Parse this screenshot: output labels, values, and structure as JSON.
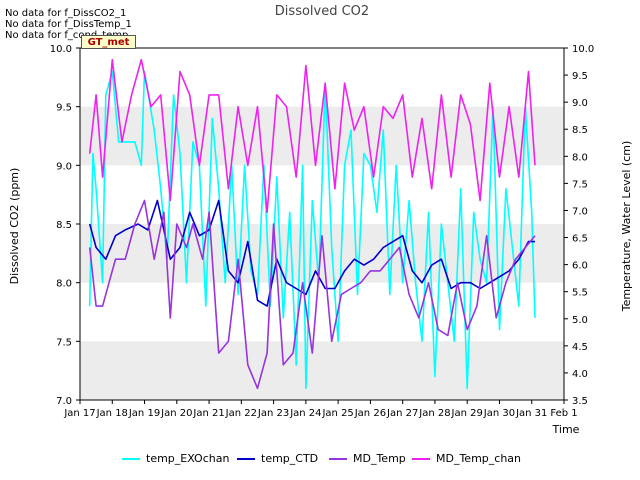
{
  "notices": [
    "No data for f_DissCO2_1",
    "No data for f_DissTemp_1",
    "No data for f_cond_temp"
  ],
  "badge": "GT_met",
  "chart_data": {
    "type": "line",
    "title": "Dissolved CO2",
    "xlabel": "Time",
    "ylabel_left": "Dissolved CO2 (ppm)",
    "ylabel_right": "Temperature, Water Level (cm)",
    "x_ticks": [
      "Jan 17",
      "Jan 18",
      "Jan 19",
      "Jan 20",
      "Jan 21",
      "Jan 22",
      "Jan 23",
      "Jan 24",
      "Jan 25",
      "Jan 26",
      "Jan 27",
      "Jan 28",
      "Jan 29",
      "Jan 30",
      "Jan 31",
      "Feb 1"
    ],
    "xlim": [
      17,
      32
    ],
    "ylim_left": [
      7.0,
      10.0
    ],
    "yticks_left": [
      "7.0",
      "7.5",
      "8.0",
      "8.5",
      "9.0",
      "9.5",
      "10.0"
    ],
    "ylim_right": [
      3.5,
      10.0
    ],
    "yticks_right": [
      "3.5",
      "4.0",
      "4.5",
      "5.0",
      "5.5",
      "6.0",
      "6.5",
      "7.0",
      "7.5",
      "8.0",
      "8.5",
      "9.0",
      "9.5",
      "10.0"
    ],
    "grid_bands": true,
    "legend_position": "bottom",
    "series": [
      {
        "name": "temp_EXOchan",
        "color": "#00ffff",
        "x": [
          17.3,
          17.4,
          17.5,
          17.7,
          17.8,
          18.0,
          18.2,
          18.4,
          18.7,
          18.9,
          19.0,
          19.3,
          19.5,
          19.7,
          19.9,
          20.1,
          20.3,
          20.5,
          20.7,
          20.9,
          21.1,
          21.3,
          21.5,
          21.7,
          21.9,
          22.1,
          22.3,
          22.5,
          22.7,
          22.9,
          23.1,
          23.3,
          23.5,
          23.7,
          23.9,
          24.0,
          24.2,
          24.4,
          24.6,
          24.8,
          25.0,
          25.2,
          25.4,
          25.6,
          25.8,
          26.0,
          26.2,
          26.4,
          26.6,
          26.8,
          27.0,
          27.2,
          27.4,
          27.6,
          27.8,
          28.0,
          28.2,
          28.4,
          28.6,
          28.8,
          29.0,
          29.2,
          29.4,
          29.6,
          29.8,
          30.0,
          30.2,
          30.4,
          30.6,
          30.8,
          31.0,
          31.1
        ],
        "y": [
          7.8,
          9.1,
          8.8,
          8.0,
          9.6,
          9.8,
          9.2,
          9.2,
          9.2,
          9.0,
          9.8,
          9.3,
          8.8,
          8.2,
          9.6,
          9.1,
          8.0,
          9.2,
          9.0,
          7.8,
          9.4,
          8.8,
          8.0,
          9.0,
          7.9,
          9.0,
          8.1,
          7.9,
          9.0,
          7.8,
          8.9,
          7.7,
          8.6,
          7.3,
          9.0,
          7.1,
          8.7,
          8.0,
          9.7,
          8.3,
          7.5,
          9.0,
          9.3,
          7.9,
          9.1,
          9.0,
          8.6,
          9.3,
          7.9,
          9.0,
          8.0,
          8.7,
          8.0,
          7.5,
          8.6,
          7.2,
          8.5,
          8.0,
          7.5,
          8.8,
          7.1,
          8.6,
          8.2,
          8.0,
          9.5,
          7.6,
          8.8,
          8.3,
          7.8,
          9.5,
          8.6,
          7.7
        ]
      },
      {
        "name": "temp_CTD",
        "color": "#0000cc",
        "x": [
          17.3,
          17.5,
          17.8,
          18.1,
          18.4,
          18.8,
          19.1,
          19.4,
          19.8,
          20.1,
          20.4,
          20.7,
          21.0,
          21.3,
          21.6,
          21.9,
          22.2,
          22.5,
          22.8,
          23.1,
          23.4,
          23.7,
          24.0,
          24.3,
          24.6,
          24.9,
          25.2,
          25.5,
          25.8,
          26.1,
          26.4,
          26.7,
          27.0,
          27.3,
          27.6,
          27.9,
          28.2,
          28.5,
          28.8,
          29.1,
          29.4,
          29.7,
          30.0,
          30.3,
          30.6,
          30.9,
          31.1
        ],
        "y": [
          8.5,
          8.3,
          8.2,
          8.4,
          8.45,
          8.5,
          8.45,
          8.7,
          8.2,
          8.3,
          8.6,
          8.4,
          8.45,
          8.7,
          8.1,
          8.0,
          8.35,
          7.85,
          7.8,
          8.2,
          8.0,
          7.95,
          7.9,
          8.1,
          7.95,
          7.95,
          8.1,
          8.2,
          8.15,
          8.2,
          8.3,
          8.35,
          8.4,
          8.1,
          8.0,
          8.15,
          8.2,
          7.95,
          8.0,
          8.0,
          7.95,
          8.0,
          8.05,
          8.1,
          8.2,
          8.35,
          8.35
        ]
      },
      {
        "name": "MD_Temp",
        "color": "#9933dd",
        "x": [
          17.3,
          17.5,
          17.7,
          17.9,
          18.1,
          18.4,
          18.7,
          19.0,
          19.3,
          19.6,
          19.8,
          20.0,
          20.3,
          20.5,
          20.8,
          21.0,
          21.3,
          21.6,
          21.9,
          22.2,
          22.5,
          22.8,
          23.0,
          23.3,
          23.6,
          23.9,
          24.2,
          24.5,
          24.8,
          25.1,
          25.4,
          25.7,
          26.0,
          26.3,
          26.6,
          26.9,
          27.2,
          27.5,
          27.8,
          28.1,
          28.4,
          28.7,
          29.0,
          29.3,
          29.6,
          29.9,
          30.2,
          30.5,
          30.8,
          31.1
        ],
        "y": [
          8.3,
          7.8,
          7.8,
          8.0,
          8.2,
          8.2,
          8.5,
          8.7,
          8.2,
          8.6,
          7.7,
          8.5,
          8.3,
          8.5,
          8.2,
          8.6,
          7.4,
          7.5,
          8.2,
          7.3,
          7.1,
          7.4,
          8.5,
          7.3,
          7.4,
          8.0,
          7.4,
          8.4,
          7.5,
          7.9,
          7.95,
          8.0,
          8.1,
          8.1,
          8.2,
          8.3,
          7.9,
          7.7,
          8.0,
          7.6,
          7.55,
          8.0,
          7.6,
          7.8,
          8.4,
          7.7,
          8.0,
          8.2,
          8.3,
          8.4
        ]
      },
      {
        "name": "MD_Temp_chan",
        "color": "#ee22ee",
        "x": [
          17.3,
          17.5,
          17.7,
          18.0,
          18.3,
          18.6,
          18.9,
          19.2,
          19.5,
          19.8,
          20.1,
          20.4,
          20.7,
          21.0,
          21.3,
          21.6,
          21.9,
          22.2,
          22.5,
          22.8,
          23.1,
          23.4,
          23.7,
          24.0,
          24.3,
          24.6,
          24.9,
          25.2,
          25.5,
          25.8,
          26.1,
          26.4,
          26.7,
          27.0,
          27.3,
          27.6,
          27.9,
          28.2,
          28.5,
          28.8,
          29.1,
          29.4,
          29.7,
          30.0,
          30.3,
          30.6,
          30.9,
          31.1
        ],
        "y": [
          9.1,
          9.6,
          8.9,
          9.9,
          9.2,
          9.6,
          9.9,
          9.5,
          9.6,
          8.7,
          9.8,
          9.6,
          9.0,
          9.6,
          9.6,
          8.8,
          9.5,
          9.0,
          9.5,
          8.6,
          9.6,
          9.5,
          8.9,
          9.85,
          9.0,
          9.7,
          8.8,
          9.7,
          9.3,
          9.5,
          8.9,
          9.5,
          9.4,
          9.6,
          8.9,
          9.4,
          8.8,
          9.6,
          8.9,
          9.6,
          9.35,
          8.7,
          9.7,
          8.9,
          9.5,
          8.9,
          9.8,
          9.0
        ]
      }
    ]
  }
}
